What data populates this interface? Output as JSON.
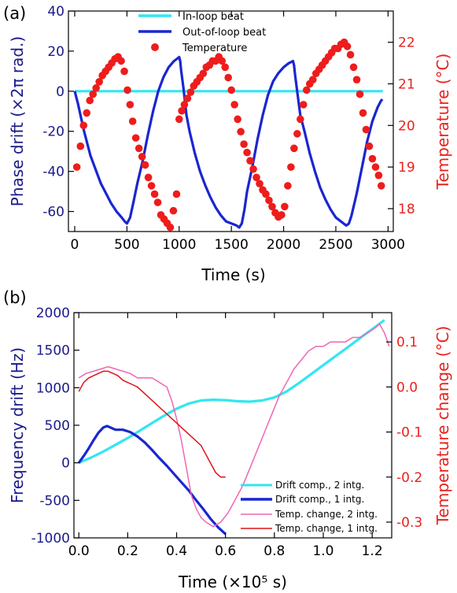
{
  "panels": [
    {
      "label": "(a)",
      "xlabel": "Time (s)",
      "ylabel_left": "Phase drift (×2π rad.)",
      "ylabel_right": "Temperature (°C)",
      "xticks": [
        "0",
        "500",
        "1000",
        "1500",
        "2000",
        "2500",
        "3000"
      ],
      "yticks_left": [
        "40",
        "20",
        "0",
        "-20",
        "-40",
        "-60"
      ],
      "yticks_right": [
        "22",
        "21",
        "20",
        "19",
        "18"
      ],
      "legend": [
        "In-loop beat",
        "Out-of-loop beat",
        "Temperature"
      ]
    },
    {
      "label": "(b)",
      "xlabel": "Time (×10⁵ s)",
      "ylabel_left": "Frequency drift (Hz)",
      "ylabel_right": "Temperature change (°C)",
      "xticks": [
        "0.0",
        "0.2",
        "0.4",
        "0.6",
        "0.8",
        "1.0",
        "1.2"
      ],
      "yticks_left": [
        "2000",
        "1500",
        "1000",
        "500",
        "0",
        "-500",
        "-1000"
      ],
      "yticks_right": [
        "0.1",
        "0.0",
        "-0.1",
        "-0.2",
        "-0.3"
      ],
      "legend": [
        "Drift comp., 2 intg.",
        "Drift comp., 1 intg.",
        "Temp. change, 2 intg.",
        "Temp. change, 1 intg."
      ]
    }
  ],
  "colors": {
    "left_axis": "#1a1a8c",
    "right_axis": "#e8221e",
    "cyan": "#33e6f0",
    "blue": "#1a26d0",
    "red_dot": "#ee1c1c",
    "pink": "#f066b4",
    "red_line": "#dd1414"
  },
  "chart_data": [
    {
      "type": "line",
      "title": "",
      "xlabel": "Time (s)",
      "ylabel": "Phase drift (×2π rad.)",
      "y2label": "Temperature (°C)",
      "xlim": [
        -60,
        3050
      ],
      "ylim": [
        -70,
        40
      ],
      "y2lim": [
        17.45,
        22.75
      ],
      "legend_position": "top-center",
      "series": [
        {
          "name": "In-loop beat",
          "axis": "left",
          "color": "#33e6f0",
          "x": [
            0,
            2950
          ],
          "y": [
            0,
            0
          ]
        },
        {
          "name": "Out-of-loop beat",
          "axis": "left",
          "color": "#1a26d0",
          "x": [
            0,
            30,
            60,
            90,
            120,
            150,
            200,
            250,
            300,
            350,
            400,
            450,
            480,
            500,
            530,
            560,
            600,
            650,
            700,
            750,
            800,
            850,
            900,
            950,
            975,
            1000,
            1010,
            1020,
            1040,
            1070,
            1100,
            1150,
            1200,
            1250,
            1300,
            1350,
            1400,
            1450,
            1500,
            1550,
            1575,
            1600,
            1625,
            1650,
            1700,
            1750,
            1800,
            1850,
            1900,
            1950,
            2000,
            2050,
            2090,
            2100,
            2110,
            2130,
            2160,
            2200,
            2250,
            2300,
            2350,
            2400,
            2450,
            2500,
            2550,
            2600,
            2625,
            2650,
            2700,
            2750,
            2800,
            2850,
            2900,
            2930,
            2945
          ],
          "y": [
            0,
            -6,
            -13,
            -20,
            -26,
            -32,
            -39,
            -46,
            -51,
            -56,
            -60,
            -63,
            -65,
            -66,
            -63,
            -56,
            -46,
            -35,
            -22,
            -10,
            0,
            7,
            12,
            15,
            16,
            17,
            15,
            10,
            2,
            -12,
            -20,
            -31,
            -40,
            -47,
            -53,
            -58,
            -62,
            -65,
            -66,
            -67,
            -68,
            -66,
            -59,
            -50,
            -38,
            -24,
            -12,
            -2,
            5,
            9,
            12,
            14,
            15,
            13,
            8,
            0,
            -12,
            -20,
            -31,
            -40,
            -48,
            -54,
            -59,
            -63,
            -65,
            -67,
            -66,
            -62,
            -51,
            -38,
            -25,
            -15,
            -8,
            -5,
            -4
          ]
        },
        {
          "name": "Temperature",
          "axis": "right",
          "color": "#ee1c1c",
          "marker": "circle",
          "x": [
            20,
            55,
            85,
            115,
            145,
            175,
            205,
            235,
            265,
            295,
            325,
            355,
            385,
            415,
            445,
            475,
            505,
            530,
            555,
            585,
            615,
            645,
            675,
            705,
            735,
            765,
            795,
            825,
            855,
            885,
            915,
            945,
            975,
            1000,
            1025,
            1050,
            1080,
            1110,
            1140,
            1170,
            1200,
            1230,
            1260,
            1290,
            1320,
            1350,
            1380,
            1410,
            1440,
            1470,
            1500,
            1530,
            1560,
            1590,
            1620,
            1650,
            1680,
            1710,
            1740,
            1770,
            1800,
            1830,
            1860,
            1890,
            1920,
            1950,
            1980,
            2010,
            2040,
            2070,
            2100,
            2130,
            2160,
            2190,
            2220,
            2250,
            2280,
            2310,
            2340,
            2370,
            2400,
            2430,
            2460,
            2490,
            2520,
            2550,
            2580,
            2610,
            2640,
            2670,
            2700,
            2730,
            2760,
            2790,
            2820,
            2850,
            2880,
            2910,
            2935
          ],
          "y": [
            19.0,
            19.5,
            20.0,
            20.3,
            20.6,
            20.75,
            20.9,
            21.05,
            21.2,
            21.3,
            21.4,
            21.5,
            21.6,
            21.65,
            21.55,
            21.3,
            20.85,
            20.5,
            20.1,
            19.7,
            19.45,
            19.25,
            19.05,
            18.75,
            18.55,
            18.35,
            18.15,
            17.85,
            17.75,
            17.65,
            17.55,
            17.95,
            18.35,
            20.15,
            20.35,
            20.5,
            20.65,
            20.8,
            20.95,
            21.05,
            21.15,
            21.25,
            21.4,
            21.45,
            21.55,
            21.55,
            21.65,
            21.55,
            21.4,
            21.15,
            20.85,
            20.5,
            20.15,
            19.85,
            19.55,
            19.35,
            19.15,
            18.95,
            18.75,
            18.6,
            18.45,
            18.35,
            18.2,
            18.05,
            17.9,
            17.8,
            17.85,
            18.05,
            18.55,
            19.0,
            19.45,
            19.8,
            20.15,
            20.5,
            20.85,
            21.0,
            21.1,
            21.25,
            21.35,
            21.45,
            21.55,
            21.65,
            21.75,
            21.85,
            21.85,
            21.95,
            22.0,
            21.9,
            21.7,
            21.4,
            21.1,
            20.75,
            20.3,
            19.9,
            19.5,
            19.2,
            19.0,
            18.8,
            18.55
          ]
        }
      ]
    },
    {
      "type": "line",
      "title": "",
      "xlabel": "Time (×10⁵ s)",
      "ylabel": "Frequency drift (Hz)",
      "y2label": "Temperature change (°C)",
      "xlim": [
        -0.02,
        1.28
      ],
      "ylim": [
        -1000,
        2000
      ],
      "y2lim": [
        -0.335,
        0.165
      ],
      "legend_position": "bottom-right",
      "series": [
        {
          "name": "Drift comp., 2 intg.",
          "axis": "left",
          "color": "#33e6f0",
          "x": [
            0.0,
            0.05,
            0.1,
            0.15,
            0.2,
            0.25,
            0.3,
            0.35,
            0.4,
            0.45,
            0.5,
            0.55,
            0.6,
            0.65,
            0.7,
            0.75,
            0.8,
            0.85,
            0.9,
            0.95,
            1.0,
            1.05,
            1.1,
            1.15,
            1.2,
            1.25
          ],
          "y": [
            0,
            70,
            150,
            240,
            330,
            430,
            530,
            630,
            720,
            790,
            830,
            840,
            835,
            820,
            815,
            830,
            870,
            950,
            1060,
            1180,
            1300,
            1420,
            1540,
            1660,
            1780,
            1900
          ]
        },
        {
          "name": "Drift comp., 1 intg.",
          "axis": "left",
          "color": "#1a26d0",
          "x": [
            0.0,
            0.02,
            0.04,
            0.06,
            0.08,
            0.1,
            0.115,
            0.13,
            0.15,
            0.18,
            0.21,
            0.24,
            0.27,
            0.3,
            0.33,
            0.36,
            0.39,
            0.42,
            0.45,
            0.48,
            0.51,
            0.54,
            0.57,
            0.6
          ],
          "y": [
            0,
            90,
            190,
            300,
            400,
            470,
            490,
            470,
            440,
            440,
            410,
            350,
            270,
            170,
            60,
            -40,
            -150,
            -260,
            -370,
            -500,
            -620,
            -750,
            -860,
            -950
          ]
        },
        {
          "name": "Temp. change, 2 intg.",
          "axis": "right",
          "color": "#f066b4",
          "x": [
            0.0,
            0.03,
            0.06,
            0.09,
            0.12,
            0.15,
            0.18,
            0.21,
            0.24,
            0.27,
            0.3,
            0.33,
            0.36,
            0.38,
            0.4,
            0.42,
            0.44,
            0.46,
            0.48,
            0.5,
            0.52,
            0.55,
            0.58,
            0.61,
            0.64,
            0.67,
            0.7,
            0.73,
            0.76,
            0.79,
            0.82,
            0.85,
            0.88,
            0.91,
            0.94,
            0.97,
            1.0,
            1.03,
            1.06,
            1.09,
            1.12,
            1.15,
            1.18,
            1.21,
            1.23,
            1.25,
            1.27
          ],
          "y": [
            0.02,
            0.03,
            0.035,
            0.04,
            0.045,
            0.04,
            0.035,
            0.03,
            0.02,
            0.02,
            0.02,
            0.01,
            0.0,
            -0.03,
            -0.07,
            -0.12,
            -0.18,
            -0.24,
            -0.27,
            -0.29,
            -0.3,
            -0.31,
            -0.3,
            -0.28,
            -0.25,
            -0.22,
            -0.18,
            -0.14,
            -0.1,
            -0.06,
            -0.02,
            0.01,
            0.04,
            0.06,
            0.08,
            0.09,
            0.09,
            0.1,
            0.1,
            0.1,
            0.11,
            0.11,
            0.12,
            0.13,
            0.14,
            0.12,
            0.09
          ]
        },
        {
          "name": "Temp. change, 1 intg.",
          "axis": "right",
          "color": "#dd1414",
          "x": [
            0.0,
            0.02,
            0.04,
            0.06,
            0.08,
            0.1,
            0.12,
            0.14,
            0.16,
            0.18,
            0.2,
            0.22,
            0.24,
            0.26,
            0.28,
            0.3,
            0.32,
            0.34,
            0.36,
            0.38,
            0.4,
            0.42,
            0.44,
            0.46,
            0.48,
            0.5,
            0.52,
            0.54,
            0.56,
            0.58,
            0.6
          ],
          "y": [
            -0.01,
            0.01,
            0.02,
            0.025,
            0.03,
            0.035,
            0.035,
            0.03,
            0.025,
            0.015,
            0.01,
            0.005,
            0.0,
            -0.01,
            -0.02,
            -0.03,
            -0.04,
            -0.05,
            -0.06,
            -0.07,
            -0.08,
            -0.09,
            -0.1,
            -0.11,
            -0.12,
            -0.13,
            -0.15,
            -0.17,
            -0.19,
            -0.2,
            -0.2
          ]
        }
      ]
    }
  ]
}
